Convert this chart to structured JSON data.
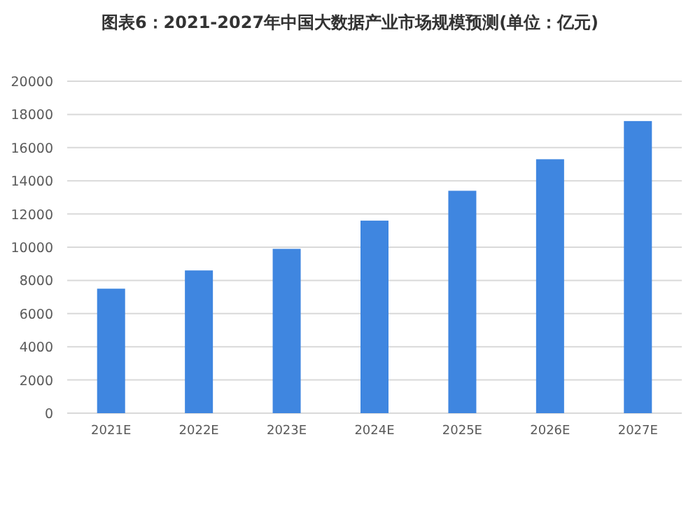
{
  "chart_data": {
    "type": "bar",
    "title": "图表6：2021-2027年中国大数据产业市场规模预测(单位：亿元)",
    "categories": [
      "2021E",
      "2022E",
      "2023E",
      "2024E",
      "2025E",
      "2026E",
      "2027E"
    ],
    "values": [
      7500,
      8600,
      9900,
      11600,
      13400,
      15300,
      17600
    ],
    "color": "#3f86e0",
    "ylim": [
      0,
      20000
    ],
    "yticks": [
      0,
      2000,
      4000,
      6000,
      8000,
      10000,
      12000,
      14000,
      16000,
      18000,
      20000
    ],
    "grid": "y"
  }
}
